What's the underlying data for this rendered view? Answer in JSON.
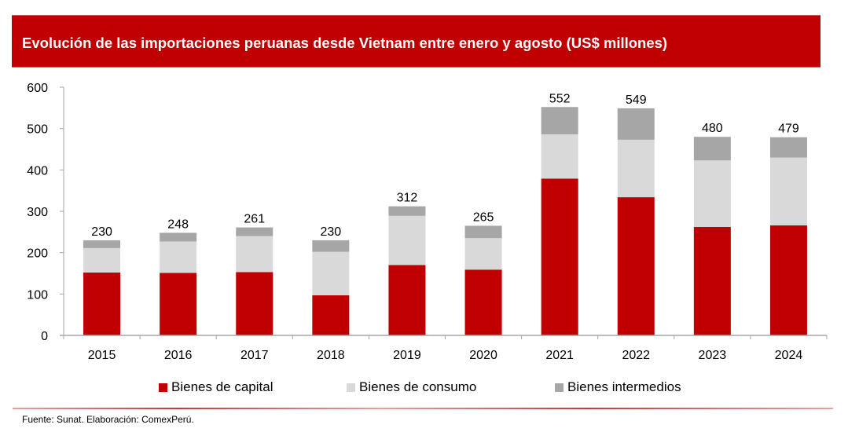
{
  "title": "Evolución de las importaciones peruanas desde Vietnam entre enero y agosto (US$ millones)",
  "source": "Fuente: Sunat. Elaboración: ComexPerú.",
  "colors": {
    "header_bg": "#c00000",
    "header_text": "#ffffff",
    "capital": "#c00000",
    "consumo": "#d9d9d9",
    "intermedios": "#a6a6a6",
    "axis": "#a6a6a6"
  },
  "chart_data": {
    "type": "bar",
    "stacked": true,
    "title": "Evolución de las importaciones peruanas desde Vietnam entre enero y agosto (US$ millones)",
    "xlabel": "",
    "ylabel": "",
    "ylim": [
      0,
      600
    ],
    "yticks": [
      0,
      100,
      200,
      300,
      400,
      500,
      600
    ],
    "ytick_labels": [
      "0",
      "100",
      "200",
      "300",
      "400",
      "500",
      "600"
    ],
    "grid": false,
    "legend_position": "bottom",
    "categories": [
      "2015",
      "2016",
      "2017",
      "2018",
      "2019",
      "2020",
      "2021",
      "2022",
      "2023",
      "2024"
    ],
    "series": [
      {
        "name": "Bienes de capital",
        "color": "#c00000",
        "values": [
          152,
          151,
          153,
          97,
          170,
          159,
          379,
          334,
          262,
          266
        ]
      },
      {
        "name": "Bienes de consumo",
        "color": "#d9d9d9",
        "values": [
          59,
          76,
          87,
          105,
          119,
          76,
          107,
          139,
          161,
          164
        ]
      },
      {
        "name": "Bienes intermedios",
        "color": "#a6a6a6",
        "values": [
          19,
          21,
          21,
          28,
          23,
          30,
          66,
          76,
          57,
          49
        ]
      }
    ],
    "totals": [
      230,
      248,
      261,
      230,
      312,
      265,
      552,
      549,
      480,
      479
    ],
    "total_labels": [
      "230",
      "248",
      "261",
      "230",
      "312",
      "265",
      "552",
      "549",
      "480",
      "479"
    ]
  }
}
